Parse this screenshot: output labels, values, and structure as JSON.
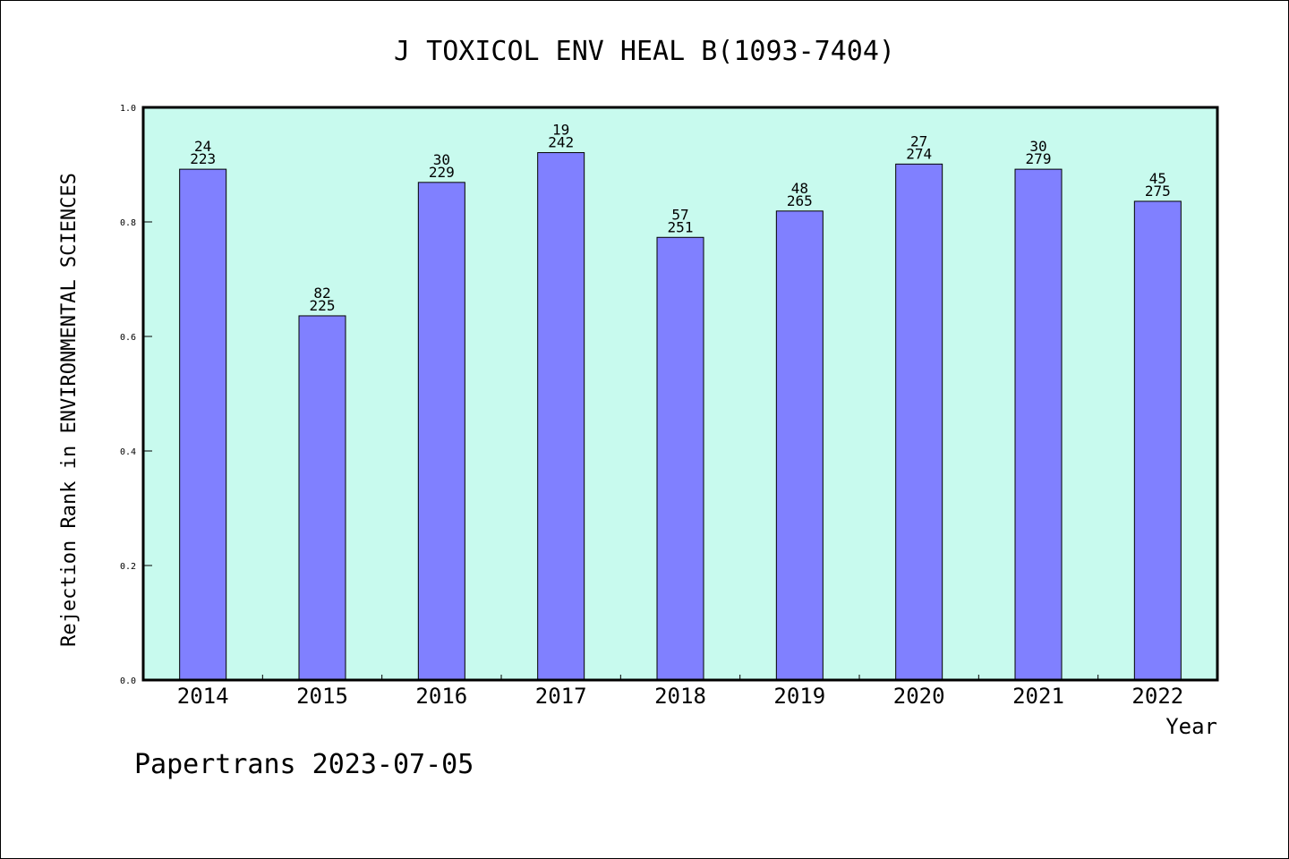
{
  "chart_data": {
    "type": "bar",
    "title": "J TOXICOL ENV HEAL B(1093-7404)",
    "xlabel": "Year",
    "ylabel": "Rejection Rank in ENVIRONMENTAL SCIENCES",
    "categories": [
      "2014",
      "2015",
      "2016",
      "2017",
      "2018",
      "2019",
      "2020",
      "2021",
      "2022"
    ],
    "values": [
      0.892,
      0.636,
      0.869,
      0.921,
      0.773,
      0.819,
      0.901,
      0.892,
      0.836
    ],
    "rank_labels": [
      "24",
      "82",
      "30",
      "19",
      "57",
      "48",
      "27",
      "30",
      "45"
    ],
    "total_labels": [
      "223",
      "225",
      "229",
      "242",
      "251",
      "265",
      "274",
      "279",
      "275"
    ],
    "ylim": [
      0,
      1.0
    ],
    "yticks": [
      "0.0",
      "0.2",
      "0.4",
      "0.6",
      "0.8",
      "1.0"
    ],
    "grid": false,
    "legend": "none",
    "colors": {
      "plot_background": "#c8faee",
      "bar_fill": "#8080ff",
      "bar_stroke": "#000000"
    }
  },
  "footer": "Papertrans 2023-07-05"
}
